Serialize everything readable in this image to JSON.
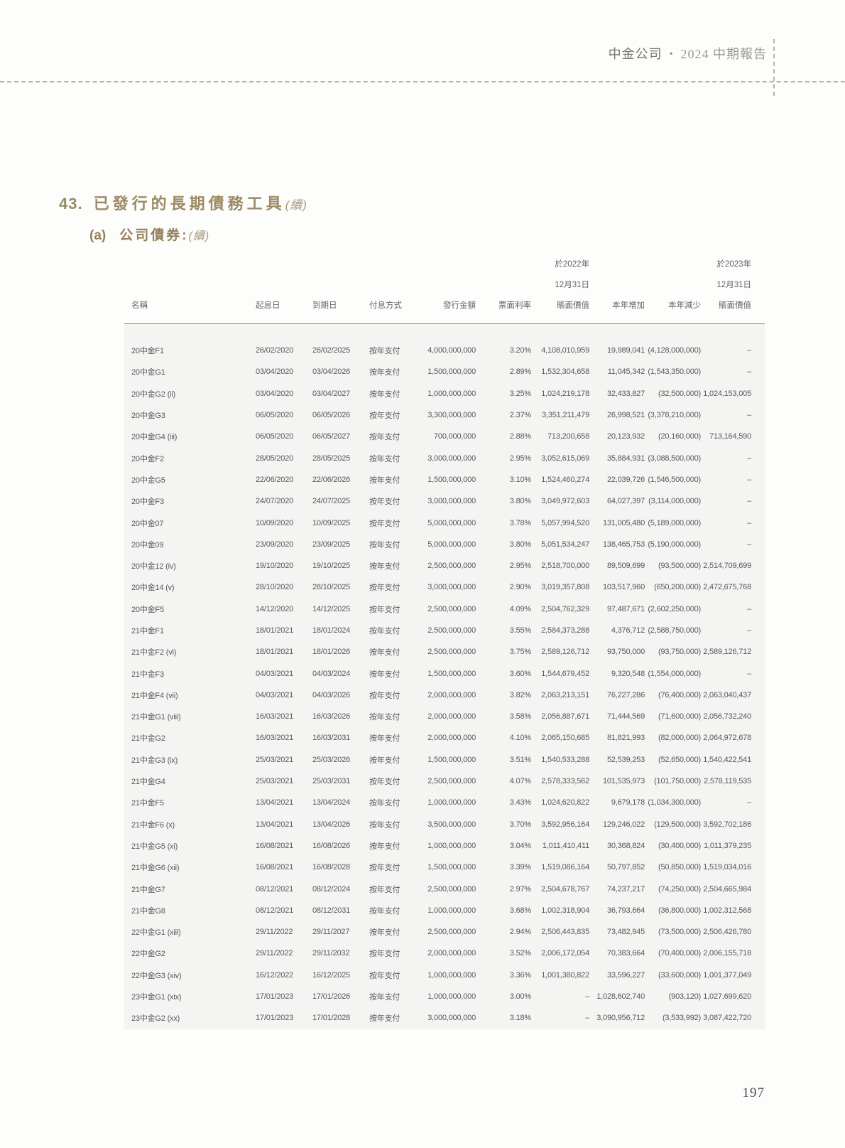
{
  "header": {
    "company": "中金公司",
    "separator": "•",
    "report": "2024 中期報告"
  },
  "section": {
    "number": "43.",
    "title": "已發行的長期債務工具",
    "continued": "(續)"
  },
  "subsection": {
    "label": "(a)",
    "title": "公司債券:",
    "continued": "(續)"
  },
  "table": {
    "headers": {
      "name": "名稱",
      "start_date": "起息日",
      "maturity_date": "到期日",
      "payment_method": "付息方式",
      "issue_amount": "發行金額",
      "coupon_rate": "票面利率",
      "cv2022_l1": "於2022年",
      "cv2022_l2": "12月31日",
      "cv2022_l3": "賬面價值",
      "additions": "本年增加",
      "decreases": "本年減少",
      "cv2023_l1": "於2023年",
      "cv2023_l2": "12月31日",
      "cv2023_l3": "賬面價值"
    },
    "rows": [
      [
        "20中金F1",
        "26/02/2020",
        "26/02/2025",
        "按年支付",
        "4,000,000,000",
        "3.20%",
        "4,108,010,959",
        "19,989,041",
        "(4,128,000,000)",
        "–"
      ],
      [
        "20中金G1",
        "03/04/2020",
        "03/04/2026",
        "按年支付",
        "1,500,000,000",
        "2.89%",
        "1,532,304,658",
        "11,045,342",
        "(1,543,350,000)",
        "–"
      ],
      [
        "20中金G2 (ii)",
        "03/04/2020",
        "03/04/2027",
        "按年支付",
        "1,000,000,000",
        "3.25%",
        "1,024,219,178",
        "32,433,827",
        "(32,500,000)",
        "1,024,153,005"
      ],
      [
        "20中金G3",
        "06/05/2020",
        "06/05/2026",
        "按年支付",
        "3,300,000,000",
        "2.37%",
        "3,351,211,479",
        "26,998,521",
        "(3,378,210,000)",
        "–"
      ],
      [
        "20中金G4 (iii)",
        "06/05/2020",
        "06/05/2027",
        "按年支付",
        "700,000,000",
        "2.88%",
        "713,200,658",
        "20,123,932",
        "(20,160,000)",
        "713,164,590"
      ],
      [
        "20中金F2",
        "28/05/2020",
        "28/05/2025",
        "按年支付",
        "3,000,000,000",
        "2.95%",
        "3,052,615,069",
        "35,884,931",
        "(3,088,500,000)",
        "–"
      ],
      [
        "20中金G5",
        "22/06/2020",
        "22/06/2026",
        "按年支付",
        "1,500,000,000",
        "3.10%",
        "1,524,460,274",
        "22,039,726",
        "(1,546,500,000)",
        "–"
      ],
      [
        "20中金F3",
        "24/07/2020",
        "24/07/2025",
        "按年支付",
        "3,000,000,000",
        "3.80%",
        "3,049,972,603",
        "64,027,397",
        "(3,114,000,000)",
        "–"
      ],
      [
        "20中金07",
        "10/09/2020",
        "10/09/2025",
        "按年支付",
        "5,000,000,000",
        "3.78%",
        "5,057,994,520",
        "131,005,480",
        "(5,189,000,000)",
        "–"
      ],
      [
        "20中金09",
        "23/09/2020",
        "23/09/2025",
        "按年支付",
        "5,000,000,000",
        "3.80%",
        "5,051,534,247",
        "138,465,753",
        "(5,190,000,000)",
        "–"
      ],
      [
        "20中金12 (iv)",
        "19/10/2020",
        "19/10/2025",
        "按年支付",
        "2,500,000,000",
        "2.95%",
        "2,518,700,000",
        "89,509,699",
        "(93,500,000)",
        "2,514,709,699"
      ],
      [
        "20中金14 (v)",
        "28/10/2020",
        "28/10/2025",
        "按年支付",
        "3,000,000,000",
        "2.90%",
        "3,019,357,808",
        "103,517,960",
        "(650,200,000)",
        "2,472,675,768"
      ],
      [
        "20中金F5",
        "14/12/2020",
        "14/12/2025",
        "按年支付",
        "2,500,000,000",
        "4.09%",
        "2,504,762,329",
        "97,487,671",
        "(2,602,250,000)",
        "–"
      ],
      [
        "21中金F1",
        "18/01/2021",
        "18/01/2024",
        "按年支付",
        "2,500,000,000",
        "3.55%",
        "2,584,373,288",
        "4,376,712",
        "(2,588,750,000)",
        "–"
      ],
      [
        "21中金F2 (vi)",
        "18/01/2021",
        "18/01/2026",
        "按年支付",
        "2,500,000,000",
        "3.75%",
        "2,589,126,712",
        "93,750,000",
        "(93,750,000)",
        "2,589,126,712"
      ],
      [
        "21中金F3",
        "04/03/2021",
        "04/03/2024",
        "按年支付",
        "1,500,000,000",
        "3.60%",
        "1,544,679,452",
        "9,320,548",
        "(1,554,000,000)",
        "–"
      ],
      [
        "21中金F4 (vii)",
        "04/03/2021",
        "04/03/2026",
        "按年支付",
        "2,000,000,000",
        "3.82%",
        "2,063,213,151",
        "76,227,286",
        "(76,400,000)",
        "2,063,040,437"
      ],
      [
        "21中金G1 (viii)",
        "16/03/2021",
        "16/03/2026",
        "按年支付",
        "2,000,000,000",
        "3.58%",
        "2,056,887,671",
        "71,444,569",
        "(71,600,000)",
        "2,056,732,240"
      ],
      [
        "21中金G2",
        "16/03/2021",
        "16/03/2031",
        "按年支付",
        "2,000,000,000",
        "4.10%",
        "2,065,150,685",
        "81,821,993",
        "(82,000,000)",
        "2,064,972,678"
      ],
      [
        "21中金G3 (ix)",
        "25/03/2021",
        "25/03/2026",
        "按年支付",
        "1,500,000,000",
        "3.51%",
        "1,540,533,288",
        "52,539,253",
        "(52,650,000)",
        "1,540,422,541"
      ],
      [
        "21中金G4",
        "25/03/2021",
        "25/03/2031",
        "按年支付",
        "2,500,000,000",
        "4.07%",
        "2,578,333,562",
        "101,535,973",
        "(101,750,000)",
        "2,578,119,535"
      ],
      [
        "21中金F5",
        "13/04/2021",
        "13/04/2024",
        "按年支付",
        "1,000,000,000",
        "3.43%",
        "1,024,620,822",
        "9,679,178",
        "(1,034,300,000)",
        "–"
      ],
      [
        "21中金F6 (x)",
        "13/04/2021",
        "13/04/2026",
        "按年支付",
        "3,500,000,000",
        "3.70%",
        "3,592,956,164",
        "129,246,022",
        "(129,500,000)",
        "3,592,702,186"
      ],
      [
        "21中金G5 (xi)",
        "16/08/2021",
        "16/08/2026",
        "按年支付",
        "1,000,000,000",
        "3.04%",
        "1,011,410,411",
        "30,368,824",
        "(30,400,000)",
        "1,011,379,235"
      ],
      [
        "21中金G6 (xii)",
        "16/08/2021",
        "16/08/2028",
        "按年支付",
        "1,500,000,000",
        "3.39%",
        "1,519,086,164",
        "50,797,852",
        "(50,850,000)",
        "1,519,034,016"
      ],
      [
        "21中金G7",
        "08/12/2021",
        "08/12/2024",
        "按年支付",
        "2,500,000,000",
        "2.97%",
        "2,504,678,767",
        "74,237,217",
        "(74,250,000)",
        "2,504,665,984"
      ],
      [
        "21中金G8",
        "08/12/2021",
        "08/12/2031",
        "按年支付",
        "1,000,000,000",
        "3.68%",
        "1,002,318,904",
        "36,793,664",
        "(36,800,000)",
        "1,002,312,568"
      ],
      [
        "22中金G1 (xiii)",
        "29/11/2022",
        "29/11/2027",
        "按年支付",
        "2,500,000,000",
        "2.94%",
        "2,506,443,835",
        "73,482,945",
        "(73,500,000)",
        "2,506,426,780"
      ],
      [
        "22中金G2",
        "29/11/2022",
        "29/11/2032",
        "按年支付",
        "2,000,000,000",
        "3.52%",
        "2,006,172,054",
        "70,383,664",
        "(70,400,000)",
        "2,006,155,718"
      ],
      [
        "22中金G3 (xiv)",
        "16/12/2022",
        "16/12/2025",
        "按年支付",
        "1,000,000,000",
        "3.36%",
        "1,001,380,822",
        "33,596,227",
        "(33,600,000)",
        "1,001,377,049"
      ],
      [
        "23中金G1 (xix)",
        "17/01/2023",
        "17/01/2026",
        "按年支付",
        "1,000,000,000",
        "3.00%",
        "–",
        "1,028,602,740",
        "(903,120)",
        "1,027,699,620"
      ],
      [
        "23中金G2 (xx)",
        "17/01/2023",
        "17/01/2028",
        "按年支付",
        "3,000,000,000",
        "3.18%",
        "–",
        "3,090,956,712",
        "(3,533,992)",
        "3,087,422,720"
      ]
    ]
  },
  "footer": {
    "page_number": "197"
  }
}
